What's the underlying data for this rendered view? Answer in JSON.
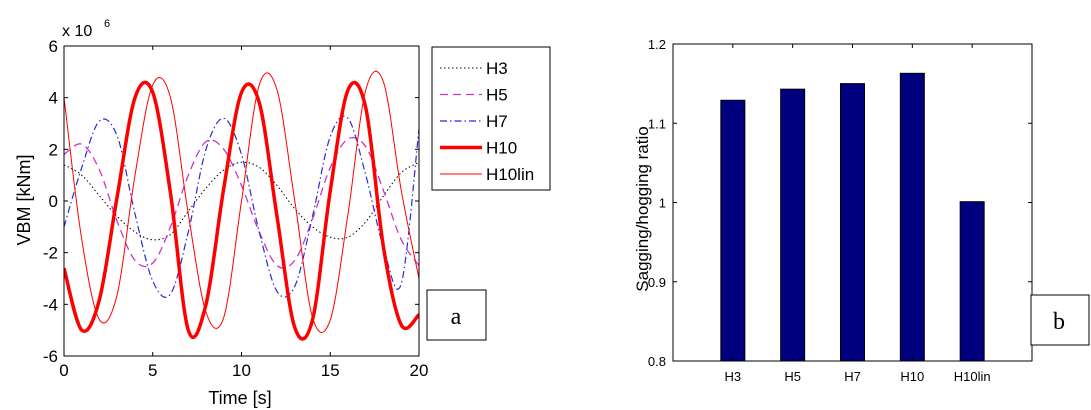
{
  "chart_data": [
    {
      "type": "line",
      "panel_label": "a",
      "xlabel": "Time [s]",
      "ylabel": "VBM [kNm]",
      "y_multiplier": "x 10",
      "y_exponent": "6",
      "xlim": [
        0,
        20
      ],
      "ylim": [
        -6,
        6
      ],
      "xticks": [
        "0",
        "5",
        "10",
        "15",
        "20"
      ],
      "yticks": [
        "-6",
        "-4",
        "-2",
        "0",
        "2",
        "4",
        "6"
      ],
      "legend_position": "outside-right",
      "series": [
        {
          "name": "H3",
          "color": "#000000",
          "style": "dotted",
          "width": 1,
          "x": [
            0,
            1,
            2,
            3,
            4,
            5,
            6,
            7,
            8,
            9,
            10,
            11,
            12,
            13,
            14,
            15,
            16,
            17,
            18,
            19,
            20
          ],
          "y": [
            1.4,
            1.0,
            0.2,
            -0.6,
            -1.2,
            -1.5,
            -1.3,
            -0.4,
            0.5,
            1.2,
            1.5,
            1.3,
            0.6,
            -0.3,
            -1.0,
            -1.4,
            -1.4,
            -0.8,
            0.2,
            1.1,
            1.5
          ]
        },
        {
          "name": "H5",
          "color": "#cc33cc",
          "style": "dashed",
          "width": 1.3,
          "x": [
            0,
            1,
            2,
            3,
            4,
            5,
            6,
            7,
            8,
            9,
            10,
            11,
            12,
            13,
            14,
            15,
            16,
            17,
            18,
            19,
            20
          ],
          "y": [
            1.8,
            2.2,
            1.2,
            -0.8,
            -2.3,
            -2.4,
            -1.0,
            1.0,
            2.3,
            2.0,
            0.6,
            -1.2,
            -2.5,
            -2.3,
            -0.7,
            1.3,
            2.4,
            2.1,
            0.4,
            -1.5,
            -2.5
          ]
        },
        {
          "name": "H7",
          "color": "#2a2ad8",
          "style": "dashdot",
          "width": 1.2,
          "x": [
            0,
            1,
            2,
            3,
            4,
            5,
            6,
            7,
            8,
            9,
            10,
            11,
            12,
            13,
            14,
            15,
            16,
            17,
            18,
            19,
            20
          ],
          "y": [
            -1.0,
            1.3,
            3.1,
            2.5,
            -0.5,
            -3.1,
            -3.6,
            -1.2,
            2.0,
            3.2,
            1.8,
            -1.2,
            -3.5,
            -3.3,
            -0.6,
            2.5,
            3.2,
            1.0,
            -1.8,
            -3.2,
            2.8
          ]
        },
        {
          "name": "H10",
          "color": "#ff0000",
          "style": "solid",
          "width": 3.5,
          "x": [
            0,
            1,
            2,
            3,
            4,
            5,
            6,
            7,
            8,
            9,
            10,
            11,
            12,
            13,
            14,
            15,
            16,
            17,
            18,
            19,
            20
          ],
          "y": [
            -2.6,
            -5.0,
            -3.8,
            0.2,
            4.0,
            4.2,
            0.3,
            -5.0,
            -4.0,
            0.5,
            4.2,
            3.8,
            -0.6,
            -4.9,
            -4.6,
            0.4,
            4.3,
            3.6,
            -1.8,
            -4.8,
            -4.4
          ]
        },
        {
          "name": "H10lin",
          "color": "#ff0000",
          "style": "solid",
          "width": 1,
          "x": [
            0,
            1,
            2,
            3,
            4,
            5,
            6,
            7,
            8,
            9,
            10,
            11,
            12,
            13,
            14,
            15,
            16,
            17,
            18,
            19,
            20
          ],
          "y": [
            4.0,
            -1.5,
            -4.6,
            -3.6,
            1.0,
            4.5,
            4.0,
            -0.5,
            -4.3,
            -4.5,
            0.0,
            4.5,
            4.3,
            0.0,
            -4.5,
            -4.6,
            -0.5,
            4.3,
            4.6,
            0.4,
            -3.0
          ]
        }
      ]
    },
    {
      "type": "bar",
      "panel_label": "b",
      "xlabel": "",
      "ylabel": "Sagging/hogging ratio",
      "ylim": [
        0.8,
        1.2
      ],
      "yticks": [
        "0.8",
        "0.9",
        "1",
        "1.1",
        "1.2"
      ],
      "grid": false,
      "bar_color": "#00007f",
      "categories": [
        "H3",
        "H5",
        "H7",
        "H10",
        "H10lin"
      ],
      "values": [
        1.129,
        1.143,
        1.15,
        1.163,
        1.001
      ]
    }
  ]
}
